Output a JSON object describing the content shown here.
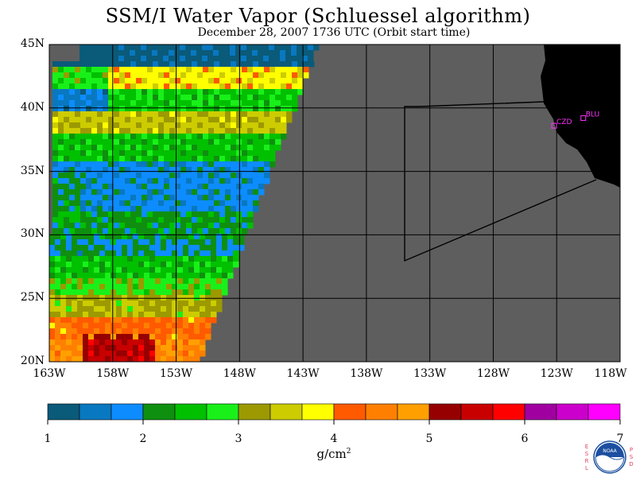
{
  "header": {
    "title": "SSM/I Water Vapor (Schluessel algorithm)",
    "subtitle": "December 28, 2007  1736 UTC  (Orbit start time)"
  },
  "map": {
    "lat_labels": [
      "45N",
      "40N",
      "35N",
      "30N",
      "25N",
      "20N"
    ],
    "lat_values": [
      45,
      40,
      35,
      30,
      25,
      20
    ],
    "lon_labels": [
      "163W",
      "158W",
      "153W",
      "148W",
      "143W",
      "138W",
      "133W",
      "128W",
      "123W",
      "118W"
    ],
    "lon_values": [
      -163,
      -158,
      -153,
      -148,
      -143,
      -138,
      -133,
      -128,
      -123,
      -118
    ],
    "lon_range": [
      -163,
      -118
    ],
    "lat_range": [
      20,
      45
    ],
    "stations": [
      {
        "name": "CZD",
        "lat": 38.6,
        "lon": -123.2
      },
      {
        "name": "BLU",
        "lat": 39.2,
        "lon": -120.9
      }
    ],
    "colors": {
      "no_data": "#5e5e5e",
      "land": "#000000",
      "grid": "#000000",
      "station": "#ff33ff"
    }
  },
  "colorbar": {
    "colors": [
      "#0a5a7a",
      "#0878c0",
      "#0d8cff",
      "#0f8f0f",
      "#00c000",
      "#19f019",
      "#9c9a00",
      "#cccc00",
      "#ffff00",
      "#ff5a00",
      "#ff8000",
      "#ffa000",
      "#960000",
      "#c80000",
      "#ff0000",
      "#a000a0",
      "#cc00cc",
      "#ff00ff"
    ],
    "ticks": [
      "1",
      "2",
      "3",
      "4",
      "5",
      "6",
      "7"
    ],
    "units_base": "g/cm",
    "units_exp": "2"
  },
  "logo": {
    "left_letters": [
      "E",
      "S",
      "R",
      "L"
    ],
    "right_letters": [
      "P",
      "S",
      "D"
    ],
    "center_text": "NOAA"
  }
}
